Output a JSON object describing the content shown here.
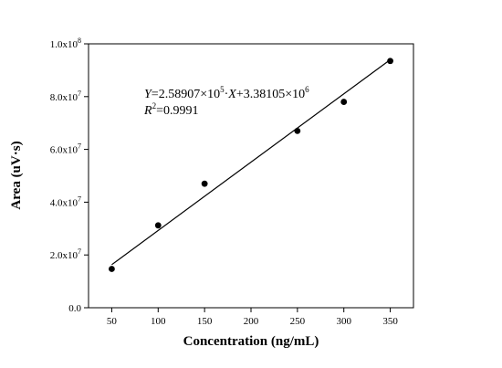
{
  "chart_data": {
    "type": "scatter",
    "xlabel": "Concentration (ng/mL)",
    "ylabel": "Area (uV·s)",
    "xlim": [
      25,
      375
    ],
    "ylim": [
      0,
      100000000
    ],
    "x_ticks": [
      50,
      100,
      150,
      200,
      250,
      300,
      350
    ],
    "y_ticks": [
      {
        "value": 0,
        "base": "0.0",
        "exp": ""
      },
      {
        "value": 20000000,
        "base": "2.0x10",
        "exp": "7"
      },
      {
        "value": 40000000,
        "base": "4.0x10",
        "exp": "7"
      },
      {
        "value": 60000000,
        "base": "6.0x10",
        "exp": "7"
      },
      {
        "value": 80000000,
        "base": "8.0x10",
        "exp": "7"
      },
      {
        "value": 100000000,
        "base": "1.0x10",
        "exp": "8"
      }
    ],
    "grid": false,
    "series": [
      {
        "x": [
          50,
          100,
          150,
          250,
          300,
          350
        ],
        "y": [
          14700000,
          31200000,
          47000000,
          67000000,
          78000000,
          93500000
        ]
      }
    ],
    "fit_line": {
      "slope": 258907,
      "intercept": 3381050,
      "x_range": [
        50,
        350
      ]
    },
    "equation": {
      "y_var": "Y",
      "eq1": "=2.58907×10",
      "exp1": "5",
      "mid": "·",
      "x_var": "X",
      "eq2": "+3.38105×10",
      "exp2": "6",
      "r_var": "R",
      "r_exp": "2",
      "r_val": "=0.9991"
    }
  }
}
